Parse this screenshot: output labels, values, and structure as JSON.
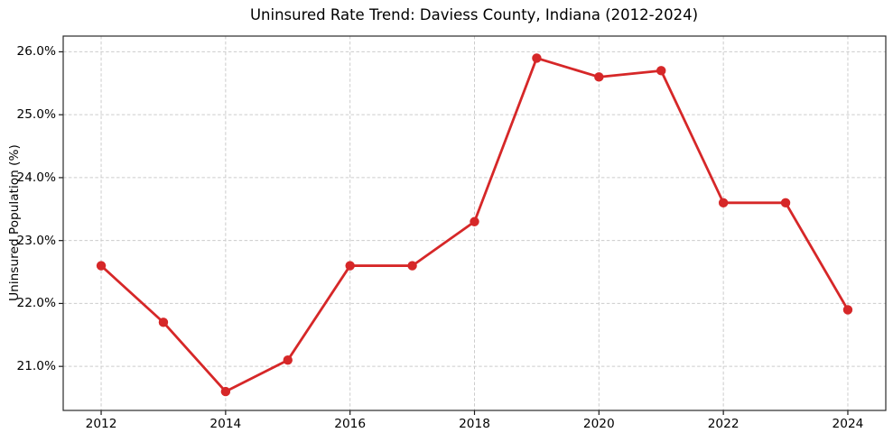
{
  "chart_data": {
    "type": "line",
    "title": "Uninsured Rate Trend: Daviess County, Indiana (2012-2024)",
    "xlabel": "",
    "ylabel": "Uninsured Population (%)",
    "x": [
      2012,
      2013,
      2014,
      2015,
      2016,
      2017,
      2018,
      2019,
      2020,
      2021,
      2022,
      2023,
      2024
    ],
    "series": [
      {
        "name": "Uninsured rate",
        "values": [
          22.6,
          21.7,
          20.6,
          21.1,
          22.6,
          22.6,
          23.3,
          25.9,
          25.6,
          25.7,
          23.6,
          23.6,
          21.9
        ]
      }
    ],
    "x_ticks": [
      2012,
      2014,
      2016,
      2018,
      2020,
      2022,
      2024
    ],
    "x_tick_labels": [
      "2012",
      "2014",
      "2016",
      "2018",
      "2020",
      "2022",
      "2024"
    ],
    "y_ticks": [
      21.0,
      22.0,
      23.0,
      24.0,
      25.0,
      26.0
    ],
    "y_tick_labels": [
      "21.0%",
      "22.0%",
      "23.0%",
      "24.0%",
      "25.0%",
      "26.0%"
    ],
    "xlim": [
      2011.39,
      2024.61
    ],
    "ylim": [
      20.3,
      26.25
    ],
    "grid": true,
    "legend": "none",
    "colors": {
      "line": "#d62728",
      "marker": "#d62728",
      "grid": "#cccccc",
      "spine": "#2a2a2a",
      "tick": "#1a1a1a",
      "text": "#000000",
      "background": "#ffffff"
    },
    "line_width": 2.8,
    "marker_radius": 5.2
  }
}
